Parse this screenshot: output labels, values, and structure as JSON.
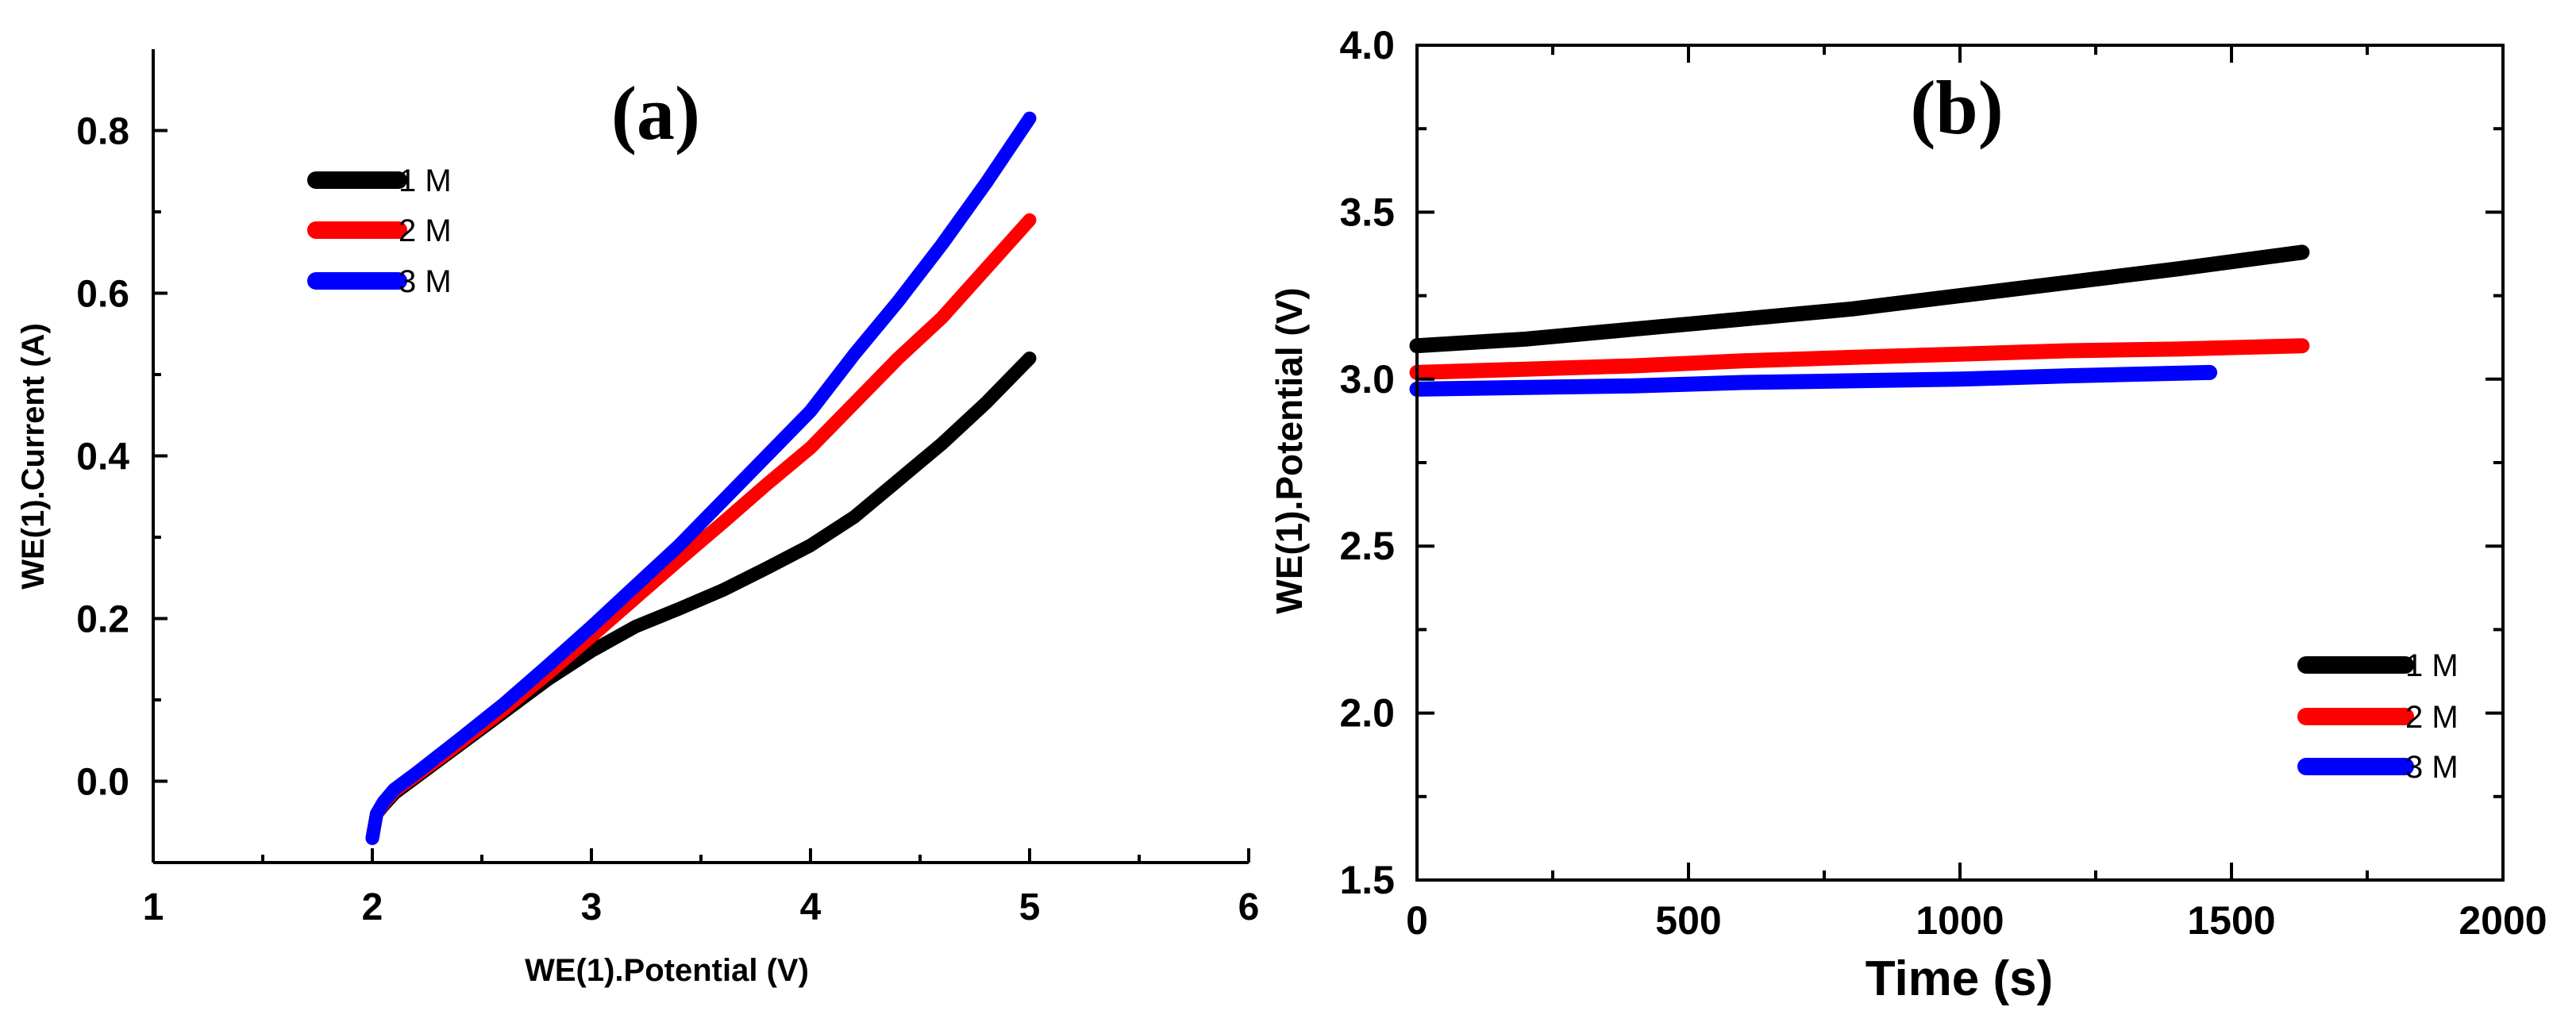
{
  "chart_data": [
    {
      "type": "line",
      "title": "(a)",
      "xlabel": "WE(1).Potential (V)",
      "ylabel": "WE(1).Current (A)",
      "xlim": [
        1,
        6
      ],
      "ylim": [
        -0.1,
        0.9
      ],
      "xticks": [
        1,
        2,
        3,
        4,
        5,
        6
      ],
      "xtick_labels": [
        "1",
        "2",
        "3",
        "4",
        "5",
        "6"
      ],
      "yticks": [
        0.0,
        0.2,
        0.4,
        0.6,
        0.8
      ],
      "ytick_labels": [
        "0.0",
        "0.2",
        "0.4",
        "0.6",
        "0.8"
      ],
      "legend": "top-left",
      "series": [
        {
          "name": "1 M",
          "color": "#000000",
          "x": [
            2.0,
            2.02,
            2.05,
            2.1,
            2.2,
            2.4,
            2.6,
            2.8,
            3.0,
            3.2,
            3.4,
            3.6,
            3.8,
            4.0,
            4.2,
            4.4,
            4.6,
            4.8,
            5.0
          ],
          "y": [
            -0.07,
            -0.04,
            -0.03,
            -0.015,
            0.005,
            0.045,
            0.085,
            0.125,
            0.16,
            0.19,
            0.212,
            0.235,
            0.262,
            0.29,
            0.325,
            0.37,
            0.415,
            0.465,
            0.52
          ]
        },
        {
          "name": "2 M",
          "color": "#ff0000",
          "x": [
            2.0,
            2.02,
            2.05,
            2.1,
            2.2,
            2.4,
            2.6,
            2.8,
            3.0,
            3.2,
            3.4,
            3.6,
            3.8,
            4.0,
            4.2,
            4.4,
            4.6,
            4.8,
            5.0
          ],
          "y": [
            -0.07,
            -0.04,
            -0.028,
            -0.012,
            0.007,
            0.047,
            0.088,
            0.132,
            0.178,
            0.225,
            0.272,
            0.318,
            0.365,
            0.41,
            0.465,
            0.52,
            0.57,
            0.63,
            0.69
          ]
        },
        {
          "name": "3 M",
          "color": "#0000ff",
          "x": [
            2.0,
            2.02,
            2.05,
            2.1,
            2.2,
            2.4,
            2.6,
            2.8,
            3.0,
            3.2,
            3.4,
            3.6,
            3.8,
            4.0,
            4.2,
            4.4,
            4.6,
            4.8,
            5.0
          ],
          "y": [
            -0.07,
            -0.04,
            -0.026,
            -0.01,
            0.01,
            0.052,
            0.095,
            0.142,
            0.19,
            0.24,
            0.29,
            0.345,
            0.4,
            0.455,
            0.525,
            0.59,
            0.66,
            0.735,
            0.815
          ]
        }
      ]
    },
    {
      "type": "line",
      "title": "(b)",
      "xlabel": "Time (s)",
      "ylabel": "WE(1).Potential (V)",
      "xlim": [
        0,
        2000
      ],
      "ylim": [
        1.5,
        4.0
      ],
      "xticks": [
        0,
        500,
        1000,
        1500,
        2000
      ],
      "xtick_labels": [
        "0",
        "500",
        "1000",
        "1500",
        "2000"
      ],
      "yticks": [
        1.5,
        2.0,
        2.5,
        3.0,
        3.5,
        4.0
      ],
      "ytick_labels": [
        "1.5",
        "2.0",
        "2.5",
        "3.0",
        "3.5",
        "4.0"
      ],
      "legend": "bottom-right",
      "series": [
        {
          "name": "1 M",
          "color": "#000000",
          "x": [
            0,
            200,
            400,
            600,
            800,
            1000,
            1200,
            1400,
            1630
          ],
          "y": [
            3.1,
            3.12,
            3.15,
            3.18,
            3.21,
            3.25,
            3.29,
            3.33,
            3.38
          ]
        },
        {
          "name": "2 M",
          "color": "#ff0000",
          "x": [
            0,
            200,
            400,
            600,
            800,
            1000,
            1200,
            1400,
            1630
          ],
          "y": [
            3.02,
            3.03,
            3.04,
            3.055,
            3.065,
            3.075,
            3.085,
            3.09,
            3.1
          ]
        },
        {
          "name": "3 M",
          "color": "#0000ff",
          "x": [
            0,
            200,
            400,
            600,
            800,
            1000,
            1200,
            1460
          ],
          "y": [
            2.97,
            2.975,
            2.98,
            2.99,
            2.995,
            3.0,
            3.01,
            3.02
          ]
        }
      ]
    }
  ]
}
